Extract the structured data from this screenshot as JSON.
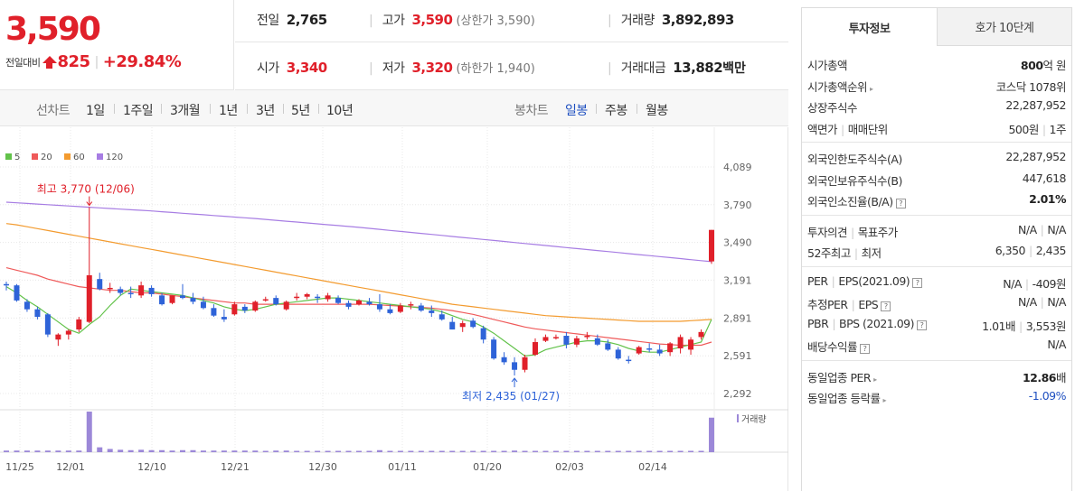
{
  "price": {
    "current": "3,590",
    "change_label": "전일대비",
    "change_amount": "825",
    "change_pct": "+29.84%"
  },
  "stats": {
    "prev_close": {
      "label": "전일",
      "value": "2,765"
    },
    "high": {
      "label": "고가",
      "value": "3,590",
      "note": "(상한가 3,590)"
    },
    "volume": {
      "label": "거래량",
      "value": "3,892,893"
    },
    "open": {
      "label": "시가",
      "value": "3,340"
    },
    "low": {
      "label": "저가",
      "value": "3,320",
      "note": "(하한가 1,940)"
    },
    "amount": {
      "label": "거래대금",
      "value": "13,882",
      "unit": "백만"
    }
  },
  "period_bar": {
    "left_label": "선차트",
    "left_items": [
      "1일",
      "1주일",
      "3개월",
      "1년",
      "3년",
      "5년",
      "10년"
    ],
    "right_label": "봉차트",
    "right_items": [
      "일봉",
      "주봉",
      "월봉"
    ],
    "active_right": "일봉"
  },
  "chart_data": {
    "type": "candlestick",
    "legend": [
      {
        "name": "5",
        "color": "#62c24a"
      },
      {
        "name": "20",
        "color": "#ef5a5a"
      },
      {
        "name": "60",
        "color": "#f39b2f"
      },
      {
        "name": "120",
        "color": "#a77de3"
      }
    ],
    "y_ticks": [
      "4,089",
      "3,790",
      "3,490",
      "3,191",
      "2,891",
      "2,591",
      "2,292"
    ],
    "ylim": [
      2292,
      4089
    ],
    "x_ticks": [
      "11/25",
      "12/01",
      "12/10",
      "12/21",
      "12/30",
      "01/11",
      "01/20",
      "02/03",
      "02/14"
    ],
    "annotation_high": "최고 3,770 (12/06)",
    "annotation_low": "최저 2,435 (01/27)",
    "volume_label": "거래량",
    "colors": {
      "up": "#e0202a",
      "down": "#2e63d8",
      "volume": "#9c88d8"
    },
    "candles": [
      [
        3160,
        3180,
        3110,
        3150
      ],
      [
        3150,
        3160,
        3020,
        3030
      ],
      [
        3020,
        3040,
        2940,
        2960
      ],
      [
        2960,
        2980,
        2880,
        2900
      ],
      [
        2920,
        2930,
        2740,
        2760
      ],
      [
        2720,
        2770,
        2670,
        2760
      ],
      [
        2760,
        2800,
        2720,
        2790
      ],
      [
        2800,
        2900,
        2780,
        2880
      ],
      [
        2860,
        3770,
        2850,
        3230
      ],
      [
        3200,
        3250,
        3110,
        3120
      ],
      [
        3120,
        3170,
        3090,
        3130
      ],
      [
        3120,
        3140,
        3070,
        3090
      ],
      [
        3090,
        3140,
        3050,
        3080
      ],
      [
        3070,
        3180,
        3050,
        3150
      ],
      [
        3130,
        3150,
        3060,
        3080
      ],
      [
        3070,
        3090,
        2990,
        3000
      ],
      [
        3010,
        3070,
        3000,
        3070
      ],
      [
        3070,
        3160,
        3040,
        3050
      ],
      [
        3050,
        3090,
        3000,
        3020
      ],
      [
        3020,
        3060,
        2960,
        2970
      ],
      [
        2970,
        3000,
        2900,
        2910
      ],
      [
        2900,
        2960,
        2860,
        2880
      ],
      [
        2920,
        3020,
        2910,
        3000
      ],
      [
        2980,
        3000,
        2930,
        2950
      ],
      [
        2950,
        3030,
        2940,
        3020
      ],
      [
        3030,
        3060,
        3020,
        3040
      ],
      [
        3050,
        3070,
        2990,
        3000
      ],
      [
        2960,
        3030,
        2950,
        3020
      ],
      [
        3050,
        3090,
        3030,
        3060
      ],
      [
        3060,
        3090,
        3040,
        3080
      ],
      [
        3060,
        3080,
        3010,
        3050
      ],
      [
        3040,
        3090,
        3020,
        3070
      ],
      [
        3050,
        3070,
        3000,
        3010
      ],
      [
        3010,
        3030,
        2960,
        2980
      ],
      [
        3000,
        3040,
        2990,
        3030
      ],
      [
        3020,
        3050,
        2990,
        3000
      ],
      [
        3000,
        3080,
        2940,
        2960
      ],
      [
        2960,
        3000,
        2920,
        2930
      ],
      [
        2940,
        3010,
        2930,
        2990
      ],
      [
        2990,
        3020,
        2960,
        3000
      ],
      [
        2990,
        3010,
        2940,
        2950
      ],
      [
        2950,
        2990,
        2900,
        2930
      ],
      [
        2920,
        2950,
        2870,
        2880
      ],
      [
        2860,
        2900,
        2800,
        2800
      ],
      [
        2820,
        2870,
        2780,
        2850
      ],
      [
        2870,
        2890,
        2810,
        2820
      ],
      [
        2810,
        2830,
        2690,
        2720
      ],
      [
        2720,
        2740,
        2560,
        2570
      ],
      [
        2580,
        2620,
        2520,
        2540
      ],
      [
        2540,
        2580,
        2435,
        2480
      ],
      [
        2480,
        2600,
        2460,
        2580
      ],
      [
        2600,
        2730,
        2590,
        2700
      ],
      [
        2710,
        2760,
        2700,
        2740
      ],
      [
        2740,
        2760,
        2720,
        2740
      ],
      [
        2750,
        2780,
        2650,
        2680
      ],
      [
        2680,
        2750,
        2660,
        2730
      ],
      [
        2740,
        2780,
        2720,
        2750
      ],
      [
        2730,
        2760,
        2670,
        2680
      ],
      [
        2690,
        2720,
        2630,
        2640
      ],
      [
        2640,
        2660,
        2560,
        2570
      ],
      [
        2560,
        2590,
        2530,
        2550
      ],
      [
        2610,
        2670,
        2600,
        2660
      ],
      [
        2650,
        2690,
        2620,
        2640
      ],
      [
        2640,
        2680,
        2590,
        2610
      ],
      [
        2620,
        2700,
        2590,
        2690
      ],
      [
        2650,
        2760,
        2610,
        2740
      ],
      [
        2640,
        2740,
        2600,
        2720
      ],
      [
        2740,
        2800,
        2720,
        2780
      ],
      [
        3340,
        3590,
        3320,
        3590
      ]
    ],
    "ma5": [
      3140,
      3090,
      3030,
      2980,
      2920,
      2860,
      2800,
      2770,
      2840,
      2900,
      2990,
      3070,
      3120,
      3110,
      3100,
      3090,
      3080,
      3070,
      3050,
      3030,
      3010,
      2980,
      2960,
      2950,
      2960,
      2980,
      3000,
      3010,
      3020,
      3030,
      3040,
      3050,
      3050,
      3040,
      3030,
      3020,
      3010,
      3000,
      2990,
      2980,
      2970,
      2960,
      2940,
      2910,
      2880,
      2860,
      2820,
      2770,
      2710,
      2650,
      2590,
      2600,
      2640,
      2660,
      2680,
      2700,
      2710,
      2710,
      2700,
      2680,
      2650,
      2630,
      2620,
      2620,
      2640,
      2660,
      2680,
      2700,
      2880
    ],
    "ma20": [
      3290,
      3270,
      3250,
      3230,
      3200,
      3180,
      3160,
      3140,
      3130,
      3120,
      3110,
      3110,
      3100,
      3090,
      3090,
      3080,
      3070,
      3060,
      3050,
      3040,
      3030,
      3020,
      3010,
      3010,
      3000,
      3000,
      3000,
      3000,
      3000,
      3000,
      3000,
      3000,
      3000,
      3000,
      3000,
      3000,
      2995,
      2990,
      2985,
      2980,
      2975,
      2970,
      2960,
      2950,
      2935,
      2920,
      2900,
      2880,
      2860,
      2840,
      2820,
      2805,
      2795,
      2785,
      2775,
      2765,
      2755,
      2745,
      2735,
      2725,
      2715,
      2705,
      2695,
      2685,
      2680,
      2675,
      2675,
      2675,
      2700
    ],
    "ma60": [
      3640,
      3630,
      3615,
      3600,
      3585,
      3570,
      3555,
      3540,
      3525,
      3510,
      3495,
      3480,
      3465,
      3450,
      3435,
      3420,
      3405,
      3390,
      3375,
      3360,
      3345,
      3330,
      3315,
      3300,
      3285,
      3270,
      3255,
      3240,
      3225,
      3210,
      3195,
      3180,
      3165,
      3150,
      3135,
      3120,
      3105,
      3090,
      3075,
      3060,
      3045,
      3030,
      3015,
      3000,
      2990,
      2980,
      2970,
      2960,
      2950,
      2940,
      2930,
      2920,
      2910,
      2905,
      2900,
      2895,
      2890,
      2885,
      2880,
      2875,
      2870,
      2865,
      2865,
      2865,
      2865,
      2865,
      2870,
      2875,
      2880
    ],
    "ma120": [
      3810,
      3805,
      3800,
      3795,
      3790,
      3785,
      3780,
      3775,
      3770,
      3765,
      3760,
      3755,
      3750,
      3745,
      3740,
      3734,
      3728,
      3722,
      3716,
      3710,
      3704,
      3698,
      3692,
      3686,
      3680,
      3673,
      3666,
      3659,
      3652,
      3645,
      3638,
      3631,
      3624,
      3617,
      3610,
      3602,
      3594,
      3586,
      3578,
      3570,
      3562,
      3554,
      3546,
      3538,
      3530,
      3522,
      3514,
      3506,
      3498,
      3490,
      3482,
      3474,
      3466,
      3458,
      3450,
      3442,
      3434,
      3426,
      3418,
      3410,
      3402,
      3394,
      3386,
      3378,
      3370,
      3362,
      3354,
      3346,
      3338
    ],
    "volumes": [
      0.04,
      0.04,
      0.04,
      0.04,
      0.04,
      0.04,
      0.04,
      0.04,
      1.0,
      0.12,
      0.08,
      0.06,
      0.05,
      0.06,
      0.05,
      0.05,
      0.04,
      0.05,
      0.05,
      0.04,
      0.04,
      0.04,
      0.04,
      0.04,
      0.04,
      0.03,
      0.04,
      0.04,
      0.03,
      0.03,
      0.03,
      0.03,
      0.03,
      0.03,
      0.03,
      0.03,
      0.05,
      0.03,
      0.03,
      0.03,
      0.03,
      0.03,
      0.03,
      0.03,
      0.03,
      0.03,
      0.03,
      0.03,
      0.03,
      0.04,
      0.03,
      0.03,
      0.03,
      0.03,
      0.03,
      0.03,
      0.03,
      0.03,
      0.03,
      0.03,
      0.03,
      0.03,
      0.03,
      0.03,
      0.03,
      0.03,
      0.03,
      0.03,
      0.85
    ]
  },
  "info_panel": {
    "tabs": [
      "투자정보",
      "호가 10단계"
    ],
    "rows": [
      {
        "k": "시가총액",
        "v_b": "800",
        "v": "억 원"
      },
      {
        "k": "시가총액순위",
        "arrow": "▸",
        "v": "코스닥 1078위"
      },
      {
        "k": "상장주식수",
        "v": "22,287,952"
      },
      {
        "k": "액면가",
        "k2": "매매단위",
        "v": "500원",
        "v2": "1주"
      },
      {
        "k": "외국인한도주식수(A)",
        "v": "22,287,952"
      },
      {
        "k": "외국인보유주식수(B)",
        "v": "447,618"
      },
      {
        "k": "외국인소진율(B/A)",
        "q": "?",
        "v_b": "2.01%"
      },
      {
        "k": "투자의견",
        "k2": "목표주가",
        "v": "N/A",
        "v2": "N/A"
      },
      {
        "k": "52주최고",
        "k2": "최저",
        "v": "6,350",
        "v2": "2,435"
      },
      {
        "k": "PER",
        "k2": "EPS(2021.09)",
        "q": "?",
        "v": "N/A",
        "v2": "-409원"
      },
      {
        "k": "추정PER",
        "k2": "EPS",
        "q": "?",
        "v": "N/A",
        "v2": "N/A"
      },
      {
        "k": "PBR",
        "k2": "BPS (2021.09)",
        "q": "?",
        "v": "1.01배",
        "v2": "3,553원"
      },
      {
        "k": "배당수익률",
        "q": "?",
        "v": "N/A"
      },
      {
        "k": "동일업종 PER",
        "arrow": "▸",
        "v_b": "12.86",
        "v": "배"
      },
      {
        "k": "동일업종 등락률",
        "arrow": "▸",
        "v": "-1.09%"
      }
    ]
  }
}
